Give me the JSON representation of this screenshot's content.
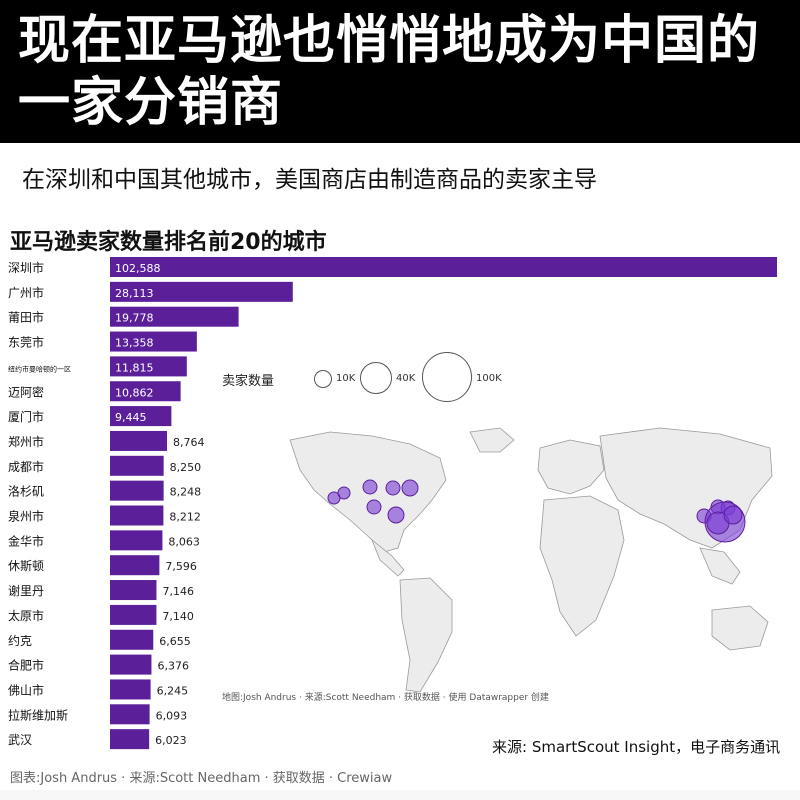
{
  "header": {
    "title": "现在亚马逊也悄悄地成为中国的一家分销商"
  },
  "subtitle": "在深圳和中国其他城市，美国商店由制造商品的卖家主导",
  "chart_title": "亚马逊卖家数量排名前20的城市",
  "legend": {
    "label": "卖家数量",
    "sizes": [
      "10K",
      "40K",
      "100K"
    ]
  },
  "map_credit": "地图:Josh Andrus · 来源:Scott Needham · 获取数据 · 使用 Datawrapper 创建",
  "source": "来源: SmartScout Insight，电子商务通讯",
  "footer": "图表:Josh Andrus · 来源:Scott Needham · 获取数据 · Crewiaw",
  "colors": {
    "bar": "#5b1f9a",
    "bubble": "#7a3bd6",
    "land": "#ececec",
    "border": "#9a9a9a",
    "header_bg": "#000000"
  },
  "chart_data": {
    "type": "bar",
    "orientation": "horizontal",
    "title": "亚马逊卖家数量排名前20的城市",
    "categories": [
      "深圳市",
      "广州市",
      "莆田市",
      "东莞市",
      "纽约市曼哈顿的一区",
      "迈阿密",
      "厦门市",
      "郑州市",
      "成都市",
      "洛杉矶",
      "泉州市",
      "金华市",
      "休斯顿",
      "谢里丹",
      "太原市",
      "约克",
      "合肥市",
      "佛山市",
      "拉斯维加斯",
      "武汉"
    ],
    "values": [
      102588,
      28113,
      19778,
      13358,
      11815,
      10862,
      9445,
      8764,
      8250,
      8248,
      8212,
      8063,
      7596,
      7146,
      7140,
      6655,
      6376,
      6245,
      6093,
      6023
    ],
    "value_labels": [
      "102,588",
      "28,113",
      "19,778",
      "13,358",
      "11,815",
      "10,862",
      "9,445",
      "8,764",
      "8,250",
      "8,248",
      "8,212",
      "8,063",
      "7,596",
      "7,146",
      "7,140",
      "6,655",
      "6,376",
      "6,245",
      "6,093",
      "6,023"
    ],
    "xlim": [
      0,
      102588
    ]
  }
}
